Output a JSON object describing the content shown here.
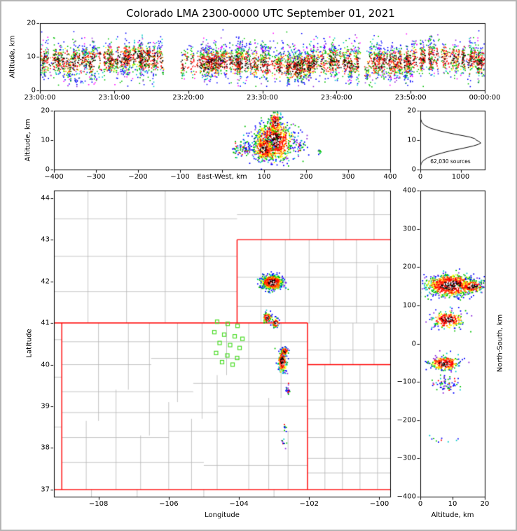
{
  "title": "Colorado LMA 2300-0000 UTC September 01, 2021",
  "colors": {
    "state_border": "#ff0000",
    "county_line": "#b4b4b4",
    "station_marker": "#4cdc28",
    "histogram_line": "#000000",
    "axis": "#000000",
    "background": "#ffffff",
    "scatter_palette": {
      "black": "#000000",
      "white": "#ffffff",
      "red": "#ff0000",
      "orange": "#ff8c00",
      "yellow": "#ffff00",
      "green": "#00c000",
      "cyan": "#00c8c8",
      "blue": "#0000ff",
      "magenta": "#ff00ff",
      "purple": "#8c28dc"
    }
  },
  "chart_data": [
    {
      "id": "time_height",
      "type": "scatter",
      "ylabel": "Altitude, km",
      "xtick_labels": [
        "23:00:00",
        "23:10:00",
        "23:20:00",
        "23:30:00",
        "23:40:00",
        "23:50:00",
        "00:00:00"
      ],
      "xlim_seconds": [
        0,
        3600
      ],
      "ylim": [
        0,
        20
      ],
      "yticks": [
        0,
        10,
        20
      ],
      "band": {
        "flashes": 560,
        "alt_base_km": 8.3,
        "alt_min_km": 1,
        "alt_max_km": 17.2,
        "burst_max_km": 19.2,
        "gaps": [
          [
            1000,
            1150,
            0.05
          ],
          [
            1160,
            1290,
            0.25
          ],
          [
            2590,
            2660,
            0.3
          ],
          [
            3300,
            3370,
            0.5
          ]
        ],
        "bursts": [
          [
            1620,
            2100
          ],
          [
            3460,
            3600
          ]
        ]
      }
    },
    {
      "id": "ew_height",
      "type": "scatter",
      "xlabel": "East-West, km",
      "ylabel": "Altitude, km",
      "xlim": [
        -400,
        400
      ],
      "ylim": [
        0,
        20
      ],
      "xticks": [
        -400,
        -300,
        -200,
        -100,
        100,
        200,
        300,
        400
      ],
      "yticks": [
        0,
        10,
        20
      ],
      "clusters": [
        {
          "cx": 122,
          "cy": 9.5,
          "sx": 24,
          "sy": 3.4,
          "n": 850
        },
        {
          "cx": 127,
          "cy": 16,
          "sx": 7,
          "sy": 2.0,
          "n": 170
        },
        {
          "cx": 100,
          "cy": 7,
          "sx": 12,
          "sy": 2.0,
          "n": 230
        },
        {
          "cx": 55,
          "cy": 7,
          "sx": 8,
          "sy": 1.2,
          "n": 55,
          "sparse": true
        },
        {
          "cx": 33,
          "cy": 6.5,
          "sx": 4,
          "sy": 1.0,
          "n": 22,
          "sparse": true
        },
        {
          "cx": 185,
          "cy": 7.5,
          "sx": 10,
          "sy": 1.5,
          "n": 35,
          "sparse": true
        },
        {
          "cx": 232,
          "cy": 6,
          "sx": 2.5,
          "sy": 0.8,
          "n": 10,
          "sparse": true
        }
      ]
    },
    {
      "id": "alt_histogram",
      "type": "line",
      "annotation": "62,030 sources",
      "xlim": [
        0,
        1600
      ],
      "ylim": [
        0,
        20
      ],
      "xticks": [
        0,
        1000
      ],
      "yticks": [
        0,
        10,
        20
      ],
      "profile_alt_km": [
        0,
        1,
        2,
        3,
        4,
        5,
        6,
        6.5,
        7,
        7.5,
        8,
        8.5,
        9,
        9.5,
        10,
        10.5,
        11,
        11.5,
        12,
        13,
        14,
        15,
        16,
        17,
        18,
        19,
        20
      ],
      "profile_counts": [
        0,
        4,
        20,
        70,
        180,
        380,
        640,
        800,
        980,
        1150,
        1310,
        1430,
        1500,
        1460,
        1390,
        1350,
        1240,
        1060,
        860,
        520,
        260,
        110,
        40,
        12,
        3,
        0,
        0
      ]
    },
    {
      "id": "plan_view",
      "type": "scatter_map",
      "xlabel": "Longitude",
      "ylabel": "Latitude",
      "xlim": [
        -109.27,
        -99.69
      ],
      "ylim": [
        36.83,
        44.18
      ],
      "xticks": [
        -108,
        -106,
        -104,
        -102,
        -100
      ],
      "yticks": [
        37,
        38,
        39,
        40,
        41,
        42,
        43,
        44
      ],
      "clusters": [
        {
          "cx": -103.05,
          "cy": 41.97,
          "sx": 0.15,
          "sy": 0.085,
          "n": 650
        },
        {
          "cx": -103.2,
          "cy": 41.13,
          "sx": 0.06,
          "sy": 0.055,
          "n": 110
        },
        {
          "cx": -102.95,
          "cy": 41.0,
          "sx": 0.05,
          "sy": 0.05,
          "n": 85
        },
        {
          "cx": -102.77,
          "cy": 40.08,
          "sx": 0.06,
          "sy": 0.13,
          "n": 240
        },
        {
          "cx": -102.7,
          "cy": 40.32,
          "sx": 0.05,
          "sy": 0.05,
          "n": 60
        },
        {
          "cx": -102.62,
          "cy": 39.38,
          "sx": 0.04,
          "sy": 0.06,
          "n": 18,
          "sparse": true
        },
        {
          "cx": -102.68,
          "cy": 38.5,
          "sx": 0.03,
          "sy": 0.04,
          "n": 8,
          "sparse": true
        },
        {
          "cx": -102.72,
          "cy": 38.12,
          "sx": 0.03,
          "sy": 0.05,
          "n": 10,
          "sparse": true
        }
      ]
    },
    {
      "id": "ns_height",
      "type": "scatter",
      "xlabel": "Altitude, km",
      "ylabel": "North-South, km",
      "xlim": [
        0,
        20
      ],
      "ylim": [
        -400,
        400
      ],
      "xticks": [
        0,
        10,
        20
      ],
      "yticks": [
        -400,
        -300,
        -200,
        -100,
        0,
        100,
        200,
        300,
        400
      ],
      "clusters": [
        {
          "cx": 9.5,
          "cy": 152,
          "sx": 4.0,
          "sy": 15,
          "n": 850
        },
        {
          "cx": 16,
          "cy": 150,
          "sx": 2.0,
          "sy": 8,
          "n": 150
        },
        {
          "cx": 8.5,
          "cy": 62,
          "sx": 2.5,
          "sy": 11,
          "n": 260
        },
        {
          "cx": 7.5,
          "cy": -52,
          "sx": 2.2,
          "sy": 9,
          "n": 260
        },
        {
          "cx": 8,
          "cy": -108,
          "sx": 2.5,
          "sy": 11,
          "n": 65,
          "sparse": true
        },
        {
          "cx": 8,
          "cy": -250,
          "sx": 3,
          "sy": 4,
          "n": 10,
          "sparse": true
        }
      ]
    }
  ],
  "map_layers": {
    "state_borders": [
      [
        -109.27,
        37,
        -99.69,
        37
      ],
      [
        -109.27,
        41,
        -102.046,
        41
      ],
      [
        -109.046,
        37,
        -109.046,
        41
      ],
      [
        -102.046,
        37,
        -102.046,
        41
      ],
      [
        -104.053,
        41,
        -104.053,
        43
      ],
      [
        -104.053,
        43,
        -99.69,
        43
      ],
      [
        -102.046,
        40,
        -99.69,
        40
      ]
    ],
    "county_lines": [
      [
        -108.35,
        37,
        -108.35,
        38.65
      ],
      [
        -108.0,
        38.65,
        -108.0,
        41
      ],
      [
        -107.5,
        37,
        -107.5,
        39.4
      ],
      [
        -107.15,
        39.4,
        -107.15,
        41
      ],
      [
        -106.8,
        37,
        -106.8,
        38.3
      ],
      [
        -106.55,
        38.3,
        -106.55,
        41
      ],
      [
        -106.0,
        37,
        -106.0,
        39.1
      ],
      [
        -105.75,
        39.1,
        -105.75,
        41
      ],
      [
        -105.35,
        37,
        -105.35,
        38.7
      ],
      [
        -105.05,
        38.7,
        -105.05,
        41
      ],
      [
        -104.62,
        37,
        -104.62,
        39.75
      ],
      [
        -104.35,
        39.75,
        -104.35,
        41
      ],
      [
        -103.72,
        37,
        -103.72,
        41
      ],
      [
        -103.15,
        37,
        -103.15,
        39.2
      ],
      [
        -102.8,
        39.2,
        -102.8,
        41
      ],
      [
        -102.6,
        37,
        -102.6,
        38.4
      ],
      [
        -109.046,
        37.65,
        -105.0,
        37.65
      ],
      [
        -105.0,
        37.58,
        -102.046,
        37.58
      ],
      [
        -109.046,
        38.25,
        -106.0,
        38.25
      ],
      [
        -106.0,
        38.4,
        -102.046,
        38.4
      ],
      [
        -109.046,
        38.85,
        -104.6,
        38.85
      ],
      [
        -104.6,
        39.0,
        -102.046,
        39.0
      ],
      [
        -109.046,
        39.35,
        -105.3,
        39.35
      ],
      [
        -105.3,
        39.55,
        -102.046,
        39.55
      ],
      [
        -109.046,
        40.0,
        -106.5,
        40.0
      ],
      [
        -106.5,
        40.15,
        -102.046,
        40.15
      ],
      [
        -109.046,
        40.55,
        -102.046,
        40.55
      ],
      [
        -108.3,
        41,
        -108.3,
        44.18
      ],
      [
        -107.2,
        41,
        -107.2,
        44.18
      ],
      [
        -106.1,
        41,
        -106.1,
        44.18
      ],
      [
        -105.0,
        41,
        -105.0,
        43.5
      ],
      [
        -109.27,
        41.75,
        -104.053,
        41.75
      ],
      [
        -109.27,
        42.6,
        -104.053,
        42.6
      ],
      [
        -109.27,
        43.5,
        -104.053,
        43.5
      ],
      [
        -103.35,
        43,
        -103.35,
        44.18
      ],
      [
        -102.55,
        43,
        -102.55,
        44.18
      ],
      [
        -101.75,
        43,
        -101.75,
        44.18
      ],
      [
        -100.95,
        43,
        -100.95,
        44.18
      ],
      [
        -100.15,
        43,
        -100.15,
        44.18
      ],
      [
        -104.053,
        43.6,
        -99.69,
        43.6
      ],
      [
        -103.37,
        41,
        -103.37,
        43
      ],
      [
        -102.68,
        41,
        -102.68,
        43
      ],
      [
        -102.0,
        41,
        -102.0,
        43
      ],
      [
        -101.3,
        41,
        -101.3,
        43
      ],
      [
        -100.65,
        41,
        -100.65,
        43
      ],
      [
        -100.05,
        41,
        -100.05,
        42.4
      ],
      [
        -104.053,
        41.4,
        -99.69,
        41.4
      ],
      [
        -104.053,
        42.1,
        -99.69,
        42.1
      ],
      [
        -102.0,
        42.45,
        -99.69,
        42.45
      ],
      [
        -102.046,
        41.0,
        -99.69,
        41.0
      ],
      [
        -101.4,
        40,
        -101.4,
        41
      ],
      [
        -100.75,
        40,
        -100.75,
        41
      ],
      [
        -100.15,
        40,
        -100.15,
        41
      ],
      [
        -102.046,
        40.35,
        -99.69,
        40.35
      ],
      [
        -101.55,
        37,
        -101.55,
        40
      ],
      [
        -101.05,
        37,
        -101.05,
        40
      ],
      [
        -100.55,
        37,
        -100.55,
        40
      ],
      [
        -100.05,
        37,
        -100.05,
        40
      ],
      [
        -102.046,
        37.4,
        -99.69,
        37.4
      ],
      [
        -102.046,
        37.75,
        -99.69,
        37.75
      ],
      [
        -102.046,
        38.25,
        -99.69,
        38.25
      ],
      [
        -102.046,
        38.7,
        -99.69,
        38.7
      ],
      [
        -102.046,
        39.15,
        -99.69,
        39.15
      ],
      [
        -102.046,
        39.55,
        -99.69,
        39.55
      ],
      [
        -109.27,
        38.5,
        -109.046,
        38.5
      ],
      [
        -109.27,
        39.7,
        -109.046,
        39.7
      ],
      [
        -109.27,
        40.6,
        -109.046,
        40.6
      ],
      [
        -108.2,
        36.83,
        -108.2,
        37
      ],
      [
        -106.9,
        36.83,
        -106.9,
        37
      ],
      [
        -105.0,
        36.83,
        -105.0,
        37
      ],
      [
        -103.0,
        36.83,
        -103.0,
        37
      ]
    ],
    "stations": [
      [
        -104.62,
        41.03
      ],
      [
        -104.32,
        40.98
      ],
      [
        -104.04,
        40.93
      ],
      [
        -104.7,
        40.78
      ],
      [
        -104.42,
        40.72
      ],
      [
        -104.12,
        40.68
      ],
      [
        -103.9,
        40.62
      ],
      [
        -104.55,
        40.52
      ],
      [
        -104.25,
        40.47
      ],
      [
        -103.98,
        40.4
      ],
      [
        -104.65,
        40.28
      ],
      [
        -104.33,
        40.22
      ],
      [
        -104.05,
        40.16
      ],
      [
        -104.48,
        40.06
      ],
      [
        -104.18,
        40.0
      ]
    ]
  }
}
